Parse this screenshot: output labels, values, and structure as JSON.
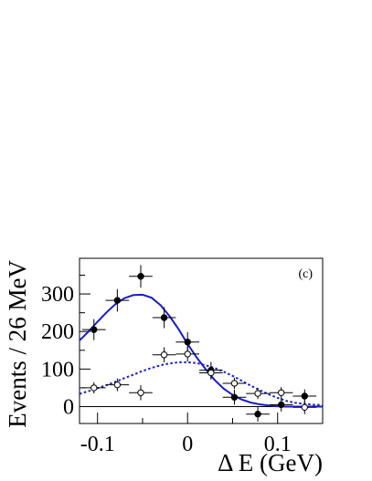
{
  "chart_data": {
    "type": "scatter",
    "title": "",
    "panel_label": "(c)",
    "xlabel": "Δ E (GeV)",
    "ylabel": "Events / 26 MeV",
    "xlim": [
      -0.12,
      0.15
    ],
    "ylim": [
      -45,
      395
    ],
    "xticks": [
      -0.1,
      0.0,
      0.1
    ],
    "xtick_labels": [
      "-0.1",
      "0",
      "0.1"
    ],
    "yticks": [
      0,
      100,
      200,
      300
    ],
    "ytick_labels": [
      "0",
      "100",
      "200",
      "300"
    ],
    "grid": false,
    "legend": "none",
    "series": [
      {
        "marker": "filled-circle",
        "color": "#000000",
        "x_half_width": 0.013,
        "points": [
          {
            "x": -0.104,
            "y": 205,
            "err": 28
          },
          {
            "x": -0.078,
            "y": 283,
            "err": 30
          },
          {
            "x": -0.052,
            "y": 347,
            "err": 30
          },
          {
            "x": -0.026,
            "y": 237,
            "err": 28
          },
          {
            "x": 0.0,
            "y": 172,
            "err": 26
          },
          {
            "x": 0.026,
            "y": 97,
            "err": 22
          },
          {
            "x": 0.052,
            "y": 25,
            "err": 20
          },
          {
            "x": 0.078,
            "y": -20,
            "err": 20
          },
          {
            "x": 0.104,
            "y": 5,
            "err": 18
          },
          {
            "x": 0.13,
            "y": 28,
            "err": 18
          }
        ]
      },
      {
        "marker": "open-circle",
        "color": "#000000",
        "x_half_width": 0.013,
        "points": [
          {
            "x": -0.104,
            "y": 50,
            "err": 15
          },
          {
            "x": -0.078,
            "y": 58,
            "err": 17
          },
          {
            "x": -0.052,
            "y": 37,
            "err": 20
          },
          {
            "x": -0.026,
            "y": 138,
            "err": 20
          },
          {
            "x": 0.0,
            "y": 140,
            "err": 20
          },
          {
            "x": 0.026,
            "y": 90,
            "err": 18
          },
          {
            "x": 0.052,
            "y": 62,
            "err": 15
          },
          {
            "x": 0.078,
            "y": 35,
            "err": 15
          },
          {
            "x": 0.104,
            "y": 37,
            "err": 15
          },
          {
            "x": 0.13,
            "y": -2,
            "err": 18
          }
        ]
      }
    ],
    "curves": [
      {
        "style": "solid",
        "color": "#1a1acc",
        "shape": "gaussian-plus-tail",
        "peak_x": -0.049,
        "peak_y": 298,
        "x": [
          -0.12,
          -0.11,
          -0.1,
          -0.09,
          -0.08,
          -0.07,
          -0.06,
          -0.05,
          -0.04,
          -0.03,
          -0.02,
          -0.01,
          0.0,
          0.01,
          0.02,
          0.03,
          0.04,
          0.05,
          0.06,
          0.07,
          0.08,
          0.09,
          0.1,
          0.11,
          0.12,
          0.13,
          0.14,
          0.15
        ],
        "y": [
          176,
          200,
          226,
          251,
          273,
          289,
          297,
          298,
          290,
          270,
          241,
          206,
          167,
          131,
          100,
          71,
          48,
          31,
          19,
          11,
          6,
          3,
          1,
          0,
          0,
          0,
          0,
          0
        ]
      },
      {
        "style": "dotted",
        "color": "#1a1acc",
        "shape": "gaussian",
        "peak_x": 0.0,
        "peak_y": 118,
        "x": [
          -0.12,
          -0.11,
          -0.1,
          -0.09,
          -0.08,
          -0.07,
          -0.06,
          -0.05,
          -0.04,
          -0.03,
          -0.02,
          -0.01,
          0.0,
          0.01,
          0.02,
          0.03,
          0.04,
          0.05,
          0.06,
          0.07,
          0.08,
          0.09,
          0.1,
          0.11,
          0.12,
          0.13,
          0.14,
          0.15
        ],
        "y": [
          34,
          41,
          49,
          57,
          66,
          76,
          85,
          95,
          103,
          110,
          115,
          118,
          118,
          116,
          110,
          103,
          93,
          82,
          69,
          56,
          44,
          33,
          23,
          15,
          10,
          7,
          5,
          4
        ]
      }
    ]
  }
}
